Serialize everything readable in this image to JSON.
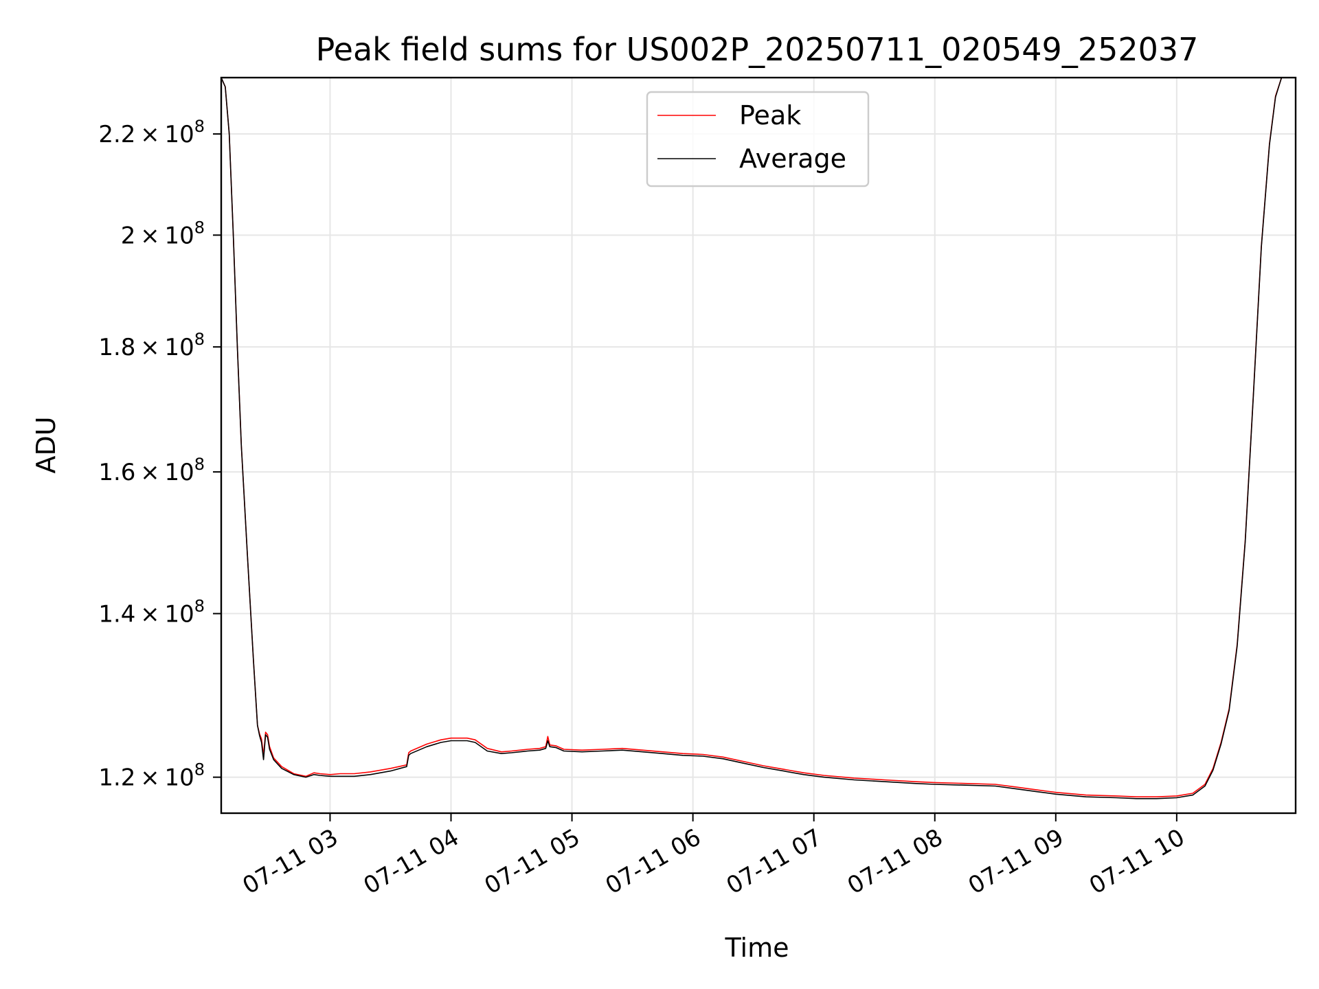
{
  "chart_data": {
    "type": "line",
    "title": "Peak field sums for US002P_20250711_020549_252037",
    "xlabel": "Time",
    "ylabel": "ADU",
    "y_scale": "log",
    "grid": true,
    "legend_position": "upper center",
    "xlim": [
      "2025-07-11 02:06",
      "2025-07-11 10:59"
    ],
    "ylim": [
      116000000,
      232000000
    ],
    "x_ticks": [
      {
        "value": "2025-07-11 03:00",
        "label": "07-11 03"
      },
      {
        "value": "2025-07-11 04:00",
        "label": "07-11 04"
      },
      {
        "value": "2025-07-11 05:00",
        "label": "07-11 05"
      },
      {
        "value": "2025-07-11 06:00",
        "label": "07-11 06"
      },
      {
        "value": "2025-07-11 07:00",
        "label": "07-11 07"
      },
      {
        "value": "2025-07-11 08:00",
        "label": "07-11 08"
      },
      {
        "value": "2025-07-11 09:00",
        "label": "07-11 09"
      },
      {
        "value": "2025-07-11 10:00",
        "label": "07-11 10"
      }
    ],
    "y_ticks": [
      {
        "value": 120000000,
        "mantissa": "1.2",
        "exponent": "8"
      },
      {
        "value": 140000000,
        "mantissa": "1.4",
        "exponent": "8"
      },
      {
        "value": 160000000,
        "mantissa": "1.6",
        "exponent": "8"
      },
      {
        "value": 180000000,
        "mantissa": "1.8",
        "exponent": "8"
      },
      {
        "value": 200000000,
        "mantissa": "2",
        "exponent": "8"
      },
      {
        "value": 220000000,
        "mantissa": "2.2",
        "exponent": "8"
      }
    ],
    "series": [
      {
        "name": "Peak",
        "color": "#ff0000",
        "points": [
          [
            "2025-07-11 02:06",
            232000000
          ],
          [
            "2025-07-11 02:08",
            230000000
          ],
          [
            "2025-07-11 02:10",
            220000000
          ],
          [
            "2025-07-11 02:12",
            200000000
          ],
          [
            "2025-07-11 02:14",
            180000000
          ],
          [
            "2025-07-11 02:16",
            164000000
          ],
          [
            "2025-07-11 02:19",
            148000000
          ],
          [
            "2025-07-11 02:22",
            134000000
          ],
          [
            "2025-07-11 02:24",
            126000000
          ],
          [
            "2025-07-11 02:25",
            125000000
          ],
          [
            "2025-07-11 02:26",
            124400000
          ],
          [
            "2025-07-11 02:27",
            122500000
          ],
          [
            "2025-07-11 02:28",
            125200000
          ],
          [
            "2025-07-11 02:29",
            124900000
          ],
          [
            "2025-07-11 02:30",
            123500000
          ],
          [
            "2025-07-11 02:32",
            122200000
          ],
          [
            "2025-07-11 02:36",
            121200000
          ],
          [
            "2025-07-11 02:42",
            120400000
          ],
          [
            "2025-07-11 02:48",
            120100000
          ],
          [
            "2025-07-11 02:52",
            120500000
          ],
          [
            "2025-07-11 02:55",
            120400000
          ],
          [
            "2025-07-11 03:00",
            120300000
          ],
          [
            "2025-07-11 03:05",
            120400000
          ],
          [
            "2025-07-11 03:12",
            120400000
          ],
          [
            "2025-07-11 03:20",
            120600000
          ],
          [
            "2025-07-11 03:30",
            121000000
          ],
          [
            "2025-07-11 03:38",
            121400000
          ],
          [
            "2025-07-11 03:39",
            122800000
          ],
          [
            "2025-07-11 03:40",
            123000000
          ],
          [
            "2025-07-11 03:48",
            123800000
          ],
          [
            "2025-07-11 03:55",
            124300000
          ],
          [
            "2025-07-11 04:00",
            124500000
          ],
          [
            "2025-07-11 04:08",
            124500000
          ],
          [
            "2025-07-11 04:12",
            124300000
          ],
          [
            "2025-07-11 04:18",
            123300000
          ],
          [
            "2025-07-11 04:25",
            122900000
          ],
          [
            "2025-07-11 04:30",
            123000000
          ],
          [
            "2025-07-11 04:38",
            123200000
          ],
          [
            "2025-07-11 04:44",
            123300000
          ],
          [
            "2025-07-11 04:47",
            123500000
          ],
          [
            "2025-07-11 04:48",
            124700000
          ],
          [
            "2025-07-11 04:49",
            123700000
          ],
          [
            "2025-07-11 04:52",
            123600000
          ],
          [
            "2025-07-11 04:56",
            123200000
          ],
          [
            "2025-07-11 05:05",
            123100000
          ],
          [
            "2025-07-11 05:15",
            123200000
          ],
          [
            "2025-07-11 05:25",
            123300000
          ],
          [
            "2025-07-11 05:35",
            123100000
          ],
          [
            "2025-07-11 05:45",
            122900000
          ],
          [
            "2025-07-11 05:55",
            122700000
          ],
          [
            "2025-07-11 06:05",
            122600000
          ],
          [
            "2025-07-11 06:15",
            122300000
          ],
          [
            "2025-07-11 06:25",
            121800000
          ],
          [
            "2025-07-11 06:35",
            121300000
          ],
          [
            "2025-07-11 06:45",
            120900000
          ],
          [
            "2025-07-11 06:55",
            120500000
          ],
          [
            "2025-07-11 07:05",
            120200000
          ],
          [
            "2025-07-11 07:20",
            119900000
          ],
          [
            "2025-07-11 07:35",
            119700000
          ],
          [
            "2025-07-11 07:50",
            119500000
          ],
          [
            "2025-07-11 08:00",
            119400000
          ],
          [
            "2025-07-11 08:15",
            119300000
          ],
          [
            "2025-07-11 08:30",
            119200000
          ],
          [
            "2025-07-11 08:40",
            118900000
          ],
          [
            "2025-07-11 08:50",
            118600000
          ],
          [
            "2025-07-11 09:00",
            118300000
          ],
          [
            "2025-07-11 09:15",
            118000000
          ],
          [
            "2025-07-11 09:30",
            117900000
          ],
          [
            "2025-07-11 09:40",
            117800000
          ],
          [
            "2025-07-11 09:50",
            117800000
          ],
          [
            "2025-07-11 10:00",
            117900000
          ],
          [
            "2025-07-11 10:08",
            118200000
          ],
          [
            "2025-07-11 10:14",
            119200000
          ],
          [
            "2025-07-11 10:18",
            121000000
          ],
          [
            "2025-07-11 10:22",
            124000000
          ],
          [
            "2025-07-11 10:26",
            128000000
          ],
          [
            "2025-07-11 10:30",
            136000000
          ],
          [
            "2025-07-11 10:34",
            150000000
          ],
          [
            "2025-07-11 10:38",
            172000000
          ],
          [
            "2025-07-11 10:42",
            198000000
          ],
          [
            "2025-07-11 10:46",
            218000000
          ],
          [
            "2025-07-11 10:49",
            228000000
          ],
          [
            "2025-07-11 10:52",
            232000000
          ],
          [
            "2025-07-11 10:59",
            232000000
          ]
        ]
      },
      {
        "name": "Average",
        "color": "#000000",
        "points": [
          [
            "2025-07-11 02:06",
            232000000
          ],
          [
            "2025-07-11 02:08",
            230000000
          ],
          [
            "2025-07-11 02:10",
            220000000
          ],
          [
            "2025-07-11 02:12",
            200000000
          ],
          [
            "2025-07-11 02:14",
            180000000
          ],
          [
            "2025-07-11 02:16",
            164000000
          ],
          [
            "2025-07-11 02:19",
            148000000
          ],
          [
            "2025-07-11 02:22",
            134000000
          ],
          [
            "2025-07-11 02:24",
            126000000
          ],
          [
            "2025-07-11 02:25",
            124800000
          ],
          [
            "2025-07-11 02:26",
            124000000
          ],
          [
            "2025-07-11 02:27",
            122000000
          ],
          [
            "2025-07-11 02:28",
            124900000
          ],
          [
            "2025-07-11 02:29",
            124600000
          ],
          [
            "2025-07-11 02:30",
            123200000
          ],
          [
            "2025-07-11 02:32",
            122000000
          ],
          [
            "2025-07-11 02:36",
            121000000
          ],
          [
            "2025-07-11 02:42",
            120300000
          ],
          [
            "2025-07-11 02:48",
            120000000
          ],
          [
            "2025-07-11 02:52",
            120300000
          ],
          [
            "2025-07-11 02:55",
            120200000
          ],
          [
            "2025-07-11 03:00",
            120100000
          ],
          [
            "2025-07-11 03:05",
            120100000
          ],
          [
            "2025-07-11 03:12",
            120100000
          ],
          [
            "2025-07-11 03:20",
            120300000
          ],
          [
            "2025-07-11 03:30",
            120700000
          ],
          [
            "2025-07-11 03:38",
            121200000
          ],
          [
            "2025-07-11 03:39",
            122500000
          ],
          [
            "2025-07-11 03:40",
            122700000
          ],
          [
            "2025-07-11 03:48",
            123500000
          ],
          [
            "2025-07-11 03:55",
            124000000
          ],
          [
            "2025-07-11 04:00",
            124200000
          ],
          [
            "2025-07-11 04:08",
            124200000
          ],
          [
            "2025-07-11 04:12",
            124000000
          ],
          [
            "2025-07-11 04:18",
            123000000
          ],
          [
            "2025-07-11 04:25",
            122700000
          ],
          [
            "2025-07-11 04:30",
            122800000
          ],
          [
            "2025-07-11 04:38",
            123000000
          ],
          [
            "2025-07-11 04:44",
            123100000
          ],
          [
            "2025-07-11 04:47",
            123300000
          ],
          [
            "2025-07-11 04:48",
            124200000
          ],
          [
            "2025-07-11 04:49",
            123500000
          ],
          [
            "2025-07-11 04:52",
            123400000
          ],
          [
            "2025-07-11 04:56",
            123000000
          ],
          [
            "2025-07-11 05:05",
            122900000
          ],
          [
            "2025-07-11 05:15",
            123000000
          ],
          [
            "2025-07-11 05:25",
            123100000
          ],
          [
            "2025-07-11 05:35",
            122900000
          ],
          [
            "2025-07-11 05:45",
            122700000
          ],
          [
            "2025-07-11 05:55",
            122500000
          ],
          [
            "2025-07-11 06:05",
            122400000
          ],
          [
            "2025-07-11 06:15",
            122100000
          ],
          [
            "2025-07-11 06:25",
            121600000
          ],
          [
            "2025-07-11 06:35",
            121100000
          ],
          [
            "2025-07-11 06:45",
            120700000
          ],
          [
            "2025-07-11 06:55",
            120300000
          ],
          [
            "2025-07-11 07:05",
            120000000
          ],
          [
            "2025-07-11 07:20",
            119700000
          ],
          [
            "2025-07-11 07:35",
            119500000
          ],
          [
            "2025-07-11 07:50",
            119300000
          ],
          [
            "2025-07-11 08:00",
            119200000
          ],
          [
            "2025-07-11 08:15",
            119100000
          ],
          [
            "2025-07-11 08:30",
            119000000
          ],
          [
            "2025-07-11 08:40",
            118700000
          ],
          [
            "2025-07-11 08:50",
            118400000
          ],
          [
            "2025-07-11 09:00",
            118100000
          ],
          [
            "2025-07-11 09:15",
            117800000
          ],
          [
            "2025-07-11 09:30",
            117700000
          ],
          [
            "2025-07-11 09:40",
            117600000
          ],
          [
            "2025-07-11 09:50",
            117600000
          ],
          [
            "2025-07-11 10:00",
            117700000
          ],
          [
            "2025-07-11 10:08",
            118000000
          ],
          [
            "2025-07-11 10:14",
            119000000
          ],
          [
            "2025-07-11 10:18",
            120800000
          ],
          [
            "2025-07-11 10:22",
            123800000
          ],
          [
            "2025-07-11 10:26",
            127800000
          ],
          [
            "2025-07-11 10:30",
            135800000
          ],
          [
            "2025-07-11 10:34",
            149800000
          ],
          [
            "2025-07-11 10:38",
            171800000
          ],
          [
            "2025-07-11 10:42",
            197800000
          ],
          [
            "2025-07-11 10:46",
            217800000
          ],
          [
            "2025-07-11 10:49",
            227800000
          ],
          [
            "2025-07-11 10:52",
            232000000
          ],
          [
            "2025-07-11 10:59",
            232000000
          ]
        ]
      }
    ]
  }
}
